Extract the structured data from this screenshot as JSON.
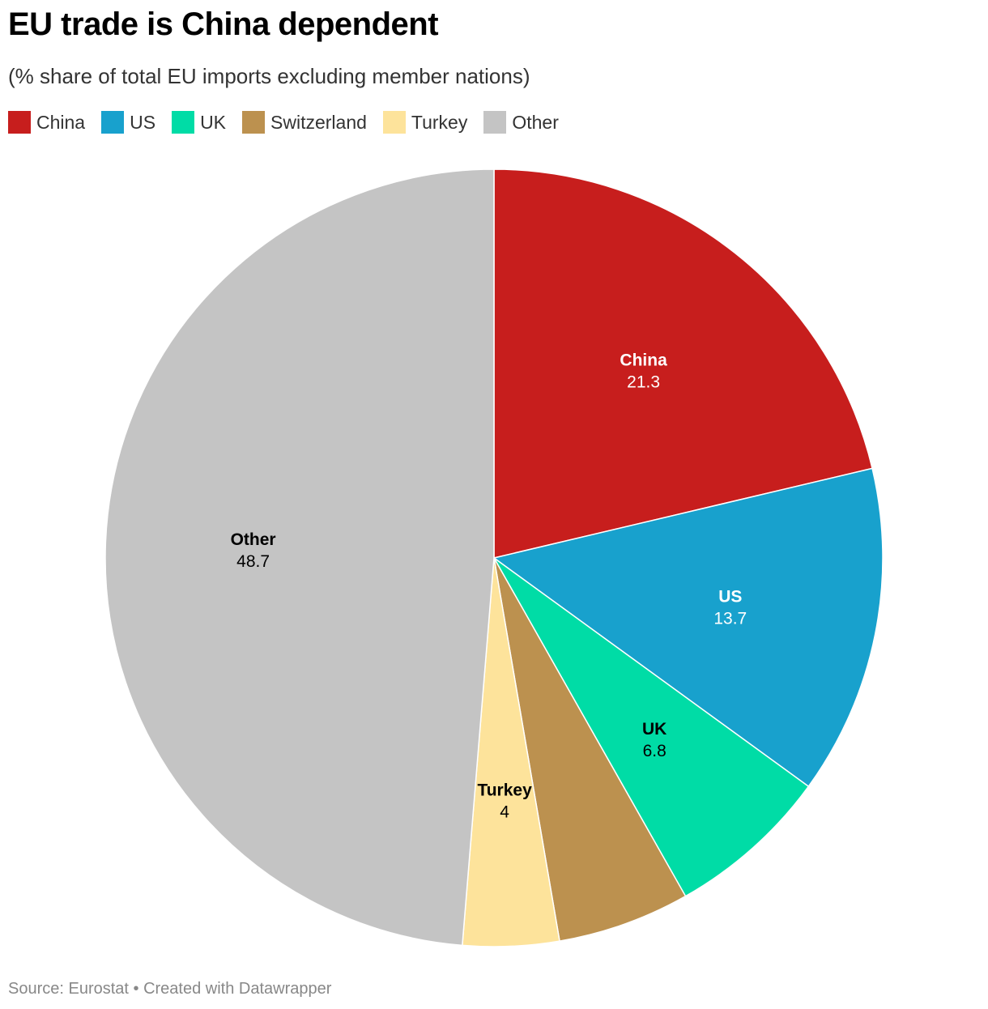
{
  "header": {
    "title": "EU trade is China dependent",
    "subtitle": "(% share of total EU imports excluding member nations)"
  },
  "legend": [
    {
      "label": "China",
      "color": "#c71e1d"
    },
    {
      "label": "US",
      "color": "#18a1cd"
    },
    {
      "label": "UK",
      "color": "#00dca6"
    },
    {
      "label": "Switzerland",
      "color": "#bc914f"
    },
    {
      "label": "Turkey",
      "color": "#fde39b"
    },
    {
      "label": "Other",
      "color": "#c4c4c4"
    }
  ],
  "chart_data": {
    "type": "pie",
    "title": "EU trade is China dependent",
    "subtitle": "(% share of total EU imports excluding member nations)",
    "legend_position": "top-left",
    "slices": [
      {
        "label": "China",
        "value": 21.3,
        "color": "#c71e1d",
        "label_color": "#ffffff",
        "show_label": true
      },
      {
        "label": "US",
        "value": 13.7,
        "color": "#18a1cd",
        "label_color": "#ffffff",
        "show_label": true
      },
      {
        "label": "UK",
        "value": 6.8,
        "color": "#00dca6",
        "label_color": "#000000",
        "show_label": true
      },
      {
        "label": "Switzerland",
        "value": 5.5,
        "color": "#bc914f",
        "label_color": "#000000",
        "show_label": false
      },
      {
        "label": "Turkey",
        "value": 4,
        "color": "#fde39b",
        "label_color": "#000000",
        "show_label": true
      },
      {
        "label": "Other",
        "value": 48.7,
        "color": "#c4c4c4",
        "label_color": "#000000",
        "show_label": true
      }
    ]
  },
  "footer": {
    "source": "Source: Eurostat • Created with Datawrapper"
  }
}
